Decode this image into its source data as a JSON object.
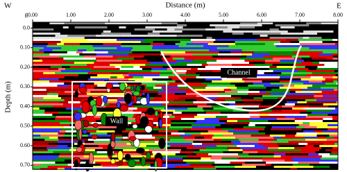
{
  "chart_data": {
    "type": "radargram",
    "title": "Distance (m)",
    "y_label": "Depth (m)",
    "corner_label": "m",
    "left_label": "W",
    "right_label": "E",
    "annotations": [
      "Channel",
      "Wall"
    ],
    "xlim": [
      0,
      8
    ],
    "xticks": [
      {
        "value": 0,
        "label": "0.00"
      },
      {
        "value": 1,
        "label": "1.00"
      },
      {
        "value": 2,
        "label": "2.00"
      },
      {
        "value": 3,
        "label": "3.00"
      },
      {
        "value": 4,
        "label": "4.00"
      },
      {
        "value": 5,
        "label": "5.00"
      },
      {
        "value": 6,
        "label": "6.00"
      },
      {
        "value": 7,
        "label": "7.00"
      },
      {
        "value": 8,
        "label": "8.00"
      }
    ],
    "ylim": [
      -0.03,
      0.72
    ],
    "yticks": [
      {
        "value": 0,
        "label": "0.0"
      },
      {
        "value": 0.1,
        "label": "0.10"
      },
      {
        "value": 0.2,
        "label": "0.20"
      },
      {
        "value": 0.3,
        "label": "0.30"
      },
      {
        "value": 0.4,
        "label": "0.40"
      },
      {
        "value": 0.5,
        "label": "0.50"
      },
      {
        "value": 0.6,
        "label": "0.60"
      },
      {
        "value": 0.7,
        "label": "0.70"
      }
    ]
  }
}
